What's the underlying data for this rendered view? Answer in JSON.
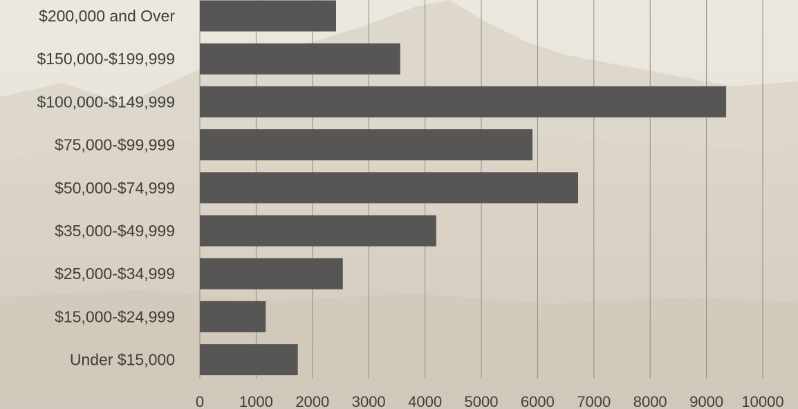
{
  "colors": {
    "bar": "#575654",
    "grid": "#8f8c87",
    "text": "#3f3d3a",
    "background": "#e7e2d8"
  },
  "chart_data": {
    "type": "bar",
    "orientation": "horizontal",
    "title": "",
    "xlabel": "",
    "ylabel": "",
    "categories": [
      "$200,000 and Over",
      "$150,000-$199,999",
      "$100,000-$149,999",
      "$75,000-$99,999",
      "$50,000-$74,999",
      "$35,000-$49,999",
      "$25,000-$34,999",
      "$15,000-$24,999",
      "Under $15,000"
    ],
    "values": [
      2420,
      3560,
      9350,
      5910,
      6720,
      4200,
      2540,
      1170,
      1740
    ],
    "xlim": [
      0,
      10000
    ],
    "xticks": [
      0,
      1000,
      2000,
      3000,
      4000,
      5000,
      6000,
      7000,
      8000,
      9000,
      10000
    ],
    "grid": "vertical"
  }
}
